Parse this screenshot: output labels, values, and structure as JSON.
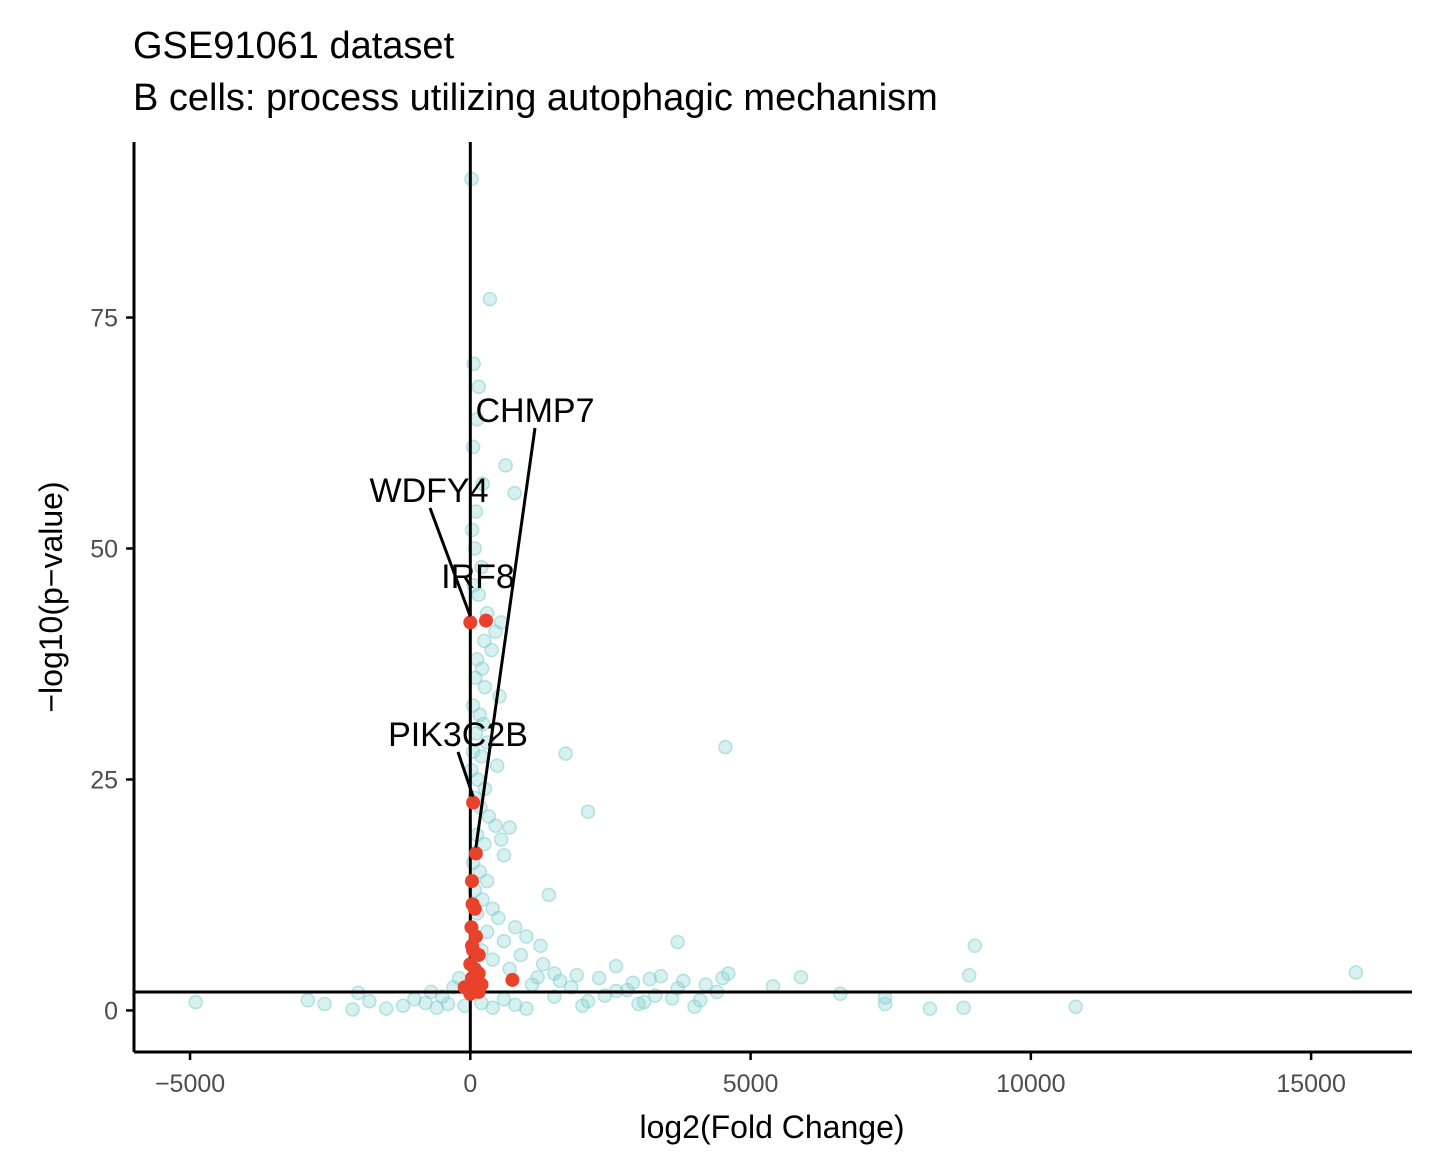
{
  "chart_data": {
    "type": "scatter",
    "title": "GSE91061 dataset",
    "subtitle": "B cells: process utilizing autophagic mechanism",
    "xlabel": "log2(Fold Change)",
    "ylabel": "−log10(p−value)",
    "xlim": [
      -6000,
      16800
    ],
    "ylim": [
      -4.5,
      94
    ],
    "xticks": [
      -5000,
      0,
      5000,
      10000,
      15000
    ],
    "xtick_labels": [
      "−5000",
      "0",
      "5000",
      "10000",
      "15000"
    ],
    "yticks": [
      0,
      25,
      50,
      75
    ],
    "ytick_labels": [
      "0",
      "25",
      "50",
      "75"
    ],
    "grid": false,
    "legend": "none",
    "reference_lines": {
      "vertical_x": 0,
      "horizontal_y": 2
    },
    "colors": {
      "background_points": "#7fcdcd",
      "highlight_points": "#e8412c",
      "lines": "#000000"
    },
    "series": [
      {
        "role": "background",
        "points": [
          [
            20,
            90
          ],
          [
            350,
            77
          ],
          [
            60,
            70
          ],
          [
            150,
            67.5
          ],
          [
            120,
            64
          ],
          [
            50,
            61
          ],
          [
            630,
            59
          ],
          [
            220,
            57
          ],
          [
            790,
            56
          ],
          [
            100,
            54
          ],
          [
            30,
            52
          ],
          [
            80,
            50
          ],
          [
            200,
            48
          ],
          [
            60,
            46
          ],
          [
            150,
            45
          ],
          [
            300,
            43
          ],
          [
            550,
            42
          ],
          [
            450,
            41
          ],
          [
            250,
            40
          ],
          [
            380,
            39
          ],
          [
            120,
            38
          ],
          [
            210,
            37
          ],
          [
            90,
            36
          ],
          [
            260,
            35
          ],
          [
            520,
            34
          ],
          [
            50,
            33
          ],
          [
            170,
            32
          ],
          [
            230,
            31
          ],
          [
            100,
            30
          ],
          [
            300,
            29
          ],
          [
            50,
            28
          ],
          [
            200,
            27.5
          ],
          [
            480,
            26.5
          ],
          [
            20,
            26
          ],
          [
            130,
            25
          ],
          [
            260,
            24
          ],
          [
            80,
            23
          ],
          [
            180,
            22
          ],
          [
            330,
            21
          ],
          [
            450,
            20
          ],
          [
            700,
            19.8
          ],
          [
            120,
            19
          ],
          [
            550,
            18.5
          ],
          [
            250,
            18
          ],
          [
            600,
            16.8
          ],
          [
            50,
            16
          ],
          [
            170,
            15
          ],
          [
            300,
            14
          ],
          [
            80,
            13
          ],
          [
            220,
            12
          ],
          [
            400,
            11
          ],
          [
            120,
            10.5
          ],
          [
            500,
            10
          ],
          [
            800,
            9
          ],
          [
            300,
            8.5
          ],
          [
            1000,
            8
          ],
          [
            600,
            7.5
          ],
          [
            1250,
            7
          ],
          [
            200,
            6.5
          ],
          [
            900,
            6
          ],
          [
            400,
            5.5
          ],
          [
            1300,
            5
          ],
          [
            700,
            4.5
          ],
          [
            1500,
            4
          ],
          [
            1900,
            3.8
          ],
          [
            2300,
            3.5
          ],
          [
            2600,
            4.8
          ],
          [
            2900,
            3
          ],
          [
            3200,
            3.4
          ],
          [
            3400,
            3.7
          ],
          [
            3800,
            3.2
          ],
          [
            4200,
            2.8
          ],
          [
            4500,
            3.5
          ],
          [
            4600,
            4
          ],
          [
            3700,
            7.4
          ],
          [
            5400,
            2.6
          ],
          [
            5900,
            3.6
          ],
          [
            6600,
            1.8
          ],
          [
            7400,
            1.4
          ],
          [
            7400,
            0.7
          ],
          [
            8200,
            0.2
          ],
          [
            8800,
            0.3
          ],
          [
            8900,
            3.8
          ],
          [
            9000,
            7
          ],
          [
            10800,
            0.4
          ],
          [
            15800,
            4.1
          ],
          [
            -500,
            1.5
          ],
          [
            -800,
            0.8
          ],
          [
            -1000,
            1.2
          ],
          [
            -1200,
            0.5
          ],
          [
            -1500,
            0.2
          ],
          [
            -1800,
            1
          ],
          [
            -2100,
            0.1
          ],
          [
            -2000,
            1.9
          ],
          [
            -2600,
            0.7
          ],
          [
            -2900,
            1.1
          ],
          [
            -4900,
            0.9
          ],
          [
            -300,
            2.5
          ],
          [
            -200,
            3.5
          ],
          [
            -100,
            0.5
          ],
          [
            -600,
            0.3
          ],
          [
            2000,
            0.5
          ],
          [
            2400,
            1.6
          ],
          [
            2800,
            2.2
          ],
          [
            3100,
            0.9
          ],
          [
            3600,
            1.3
          ],
          [
            4000,
            0.4
          ],
          [
            4400,
            2
          ],
          [
            1500,
            1.5
          ],
          [
            1100,
            2.8
          ],
          [
            800,
            0.6
          ],
          [
            600,
            1.2
          ],
          [
            1800,
            2.5
          ],
          [
            2100,
            1
          ],
          [
            2600,
            2.1
          ],
          [
            3000,
            0.7
          ],
          [
            3300,
            1.6
          ],
          [
            3700,
            2.4
          ],
          [
            4100,
            1.1
          ],
          [
            1000,
            0.2
          ],
          [
            4550,
            28.5
          ],
          [
            1700,
            27.8
          ],
          [
            2100,
            21.5
          ],
          [
            1400,
            12.5
          ],
          [
            400,
            0.3
          ],
          [
            200,
            0.8
          ],
          [
            -400,
            0.7
          ],
          [
            -700,
            2
          ],
          [
            1200,
            3.6
          ],
          [
            1600,
            3.2
          ]
        ]
      },
      {
        "role": "highlight",
        "points": [
          [
            0,
            42
          ],
          [
            280,
            42.2
          ],
          [
            50,
            22.5
          ],
          [
            100,
            17
          ],
          [
            30,
            14
          ],
          [
            40,
            11.5
          ],
          [
            80,
            11
          ],
          [
            20,
            9
          ],
          [
            100,
            8
          ],
          [
            30,
            7
          ],
          [
            50,
            6.5
          ],
          [
            150,
            6
          ],
          [
            0,
            5
          ],
          [
            80,
            4.5
          ],
          [
            150,
            4
          ],
          [
            30,
            3.5
          ],
          [
            100,
            3
          ],
          [
            750,
            3.3
          ],
          [
            200,
            2.8
          ],
          [
            -100,
            2.5
          ],
          [
            50,
            2.2
          ],
          [
            150,
            2
          ],
          [
            0,
            1.8
          ]
        ]
      }
    ],
    "labels": [
      {
        "text": "CHMP7",
        "x": 100,
        "y": 17
      },
      {
        "text": "WDFY4",
        "x": 0,
        "y": 42
      },
      {
        "text": "IRF8",
        "x": 280,
        "y": 42.2
      },
      {
        "text": "PIK3C2B",
        "x": 50,
        "y": 22.5
      }
    ]
  }
}
